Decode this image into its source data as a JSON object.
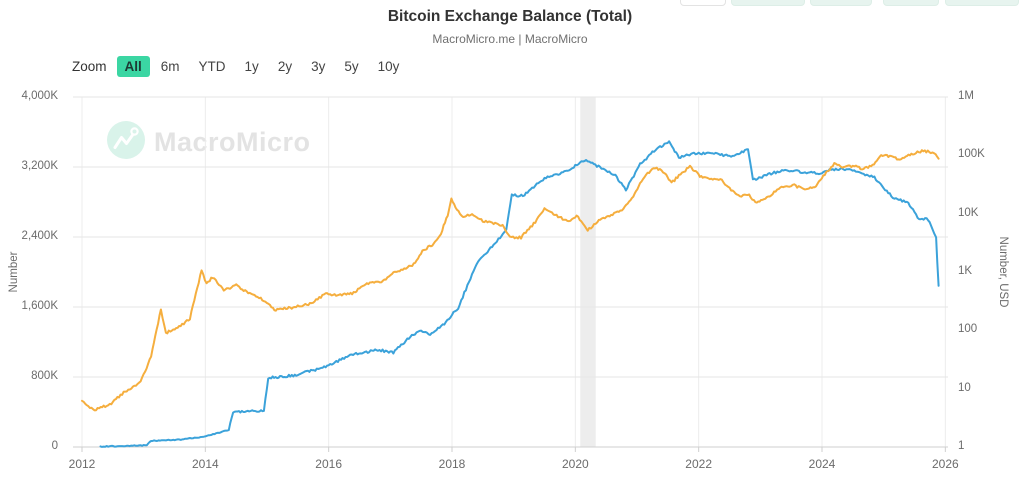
{
  "header": {
    "title": "Bitcoin Exchange Balance (Total)",
    "subtitle": "MacroMicro.me | MacroMicro"
  },
  "toolbar": {
    "zoom_label": "Zoom",
    "ranges": [
      {
        "label": "All",
        "selected": true
      },
      {
        "label": "6m",
        "selected": false
      },
      {
        "label": "YTD",
        "selected": false
      },
      {
        "label": "1y",
        "selected": false
      },
      {
        "label": "2y",
        "selected": false
      },
      {
        "label": "3y",
        "selected": false
      },
      {
        "label": "5y",
        "selected": false
      },
      {
        "label": "10y",
        "selected": false
      }
    ]
  },
  "top_right_partial_buttons": {
    "count": 5
  },
  "watermark": {
    "text": "MacroMicro"
  },
  "theme": {
    "accent_mint": "#3bd6a3",
    "series_blue": "#3ba2da",
    "series_orange": "#f5ae3e",
    "watermark_mint": "#d9f3ea"
  },
  "chart_data": {
    "type": "line",
    "title": "Bitcoin Exchange Balance (Total)",
    "source_caption": "MacroMicro.me | MacroMicro",
    "grid": true,
    "legend": "none",
    "x_axis": {
      "ticks": [
        2012,
        2014,
        2016,
        2018,
        2020,
        2022,
        2024,
        2026
      ],
      "range_years": [
        2011.85,
        2026.05
      ]
    },
    "left_axis": {
      "title": "Number",
      "scale": "linear",
      "range": [
        0,
        4000000
      ],
      "ticks": [
        {
          "value": 0,
          "label": "0"
        },
        {
          "value": 800000,
          "label": "800K"
        },
        {
          "value": 1600000,
          "label": "1,600K"
        },
        {
          "value": 2400000,
          "label": "2,400K"
        },
        {
          "value": 3200000,
          "label": "3,200K"
        },
        {
          "value": 4000000,
          "label": "4,000K"
        }
      ]
    },
    "right_axis": {
      "title": "Number, USD",
      "scale": "log",
      "range": [
        1,
        1000000
      ],
      "ticks": [
        {
          "value": 1,
          "label": "1"
        },
        {
          "value": 10,
          "label": "10"
        },
        {
          "value": 100,
          "label": "100"
        },
        {
          "value": 1000,
          "label": "1K"
        },
        {
          "value": 10000,
          "label": "10K"
        },
        {
          "value": 100000,
          "label": "100K"
        },
        {
          "value": 1000000,
          "label": "1M"
        }
      ]
    },
    "highlight_band": {
      "x_start_year": 2020.08,
      "x_end_year": 2020.33,
      "color": "#ededed"
    },
    "series": [
      {
        "id": "blue-left-exchange-balance",
        "axis": "left",
        "color": "#3ba2da",
        "points": [
          [
            2012.3,
            5000
          ],
          [
            2012.7,
            12000
          ],
          [
            2013.05,
            20000
          ],
          [
            2013.12,
            70000
          ],
          [
            2013.6,
            85000
          ],
          [
            2013.95,
            115000
          ],
          [
            2014.2,
            160000
          ],
          [
            2014.38,
            195000
          ],
          [
            2014.45,
            400000
          ],
          [
            2014.95,
            415000
          ],
          [
            2015.02,
            790000
          ],
          [
            2015.45,
            820000
          ],
          [
            2015.95,
            915000
          ],
          [
            2016.35,
            1050000
          ],
          [
            2016.8,
            1110000
          ],
          [
            2017.05,
            1080000
          ],
          [
            2017.3,
            1245000
          ],
          [
            2017.5,
            1340000
          ],
          [
            2017.62,
            1280000
          ],
          [
            2017.85,
            1390000
          ],
          [
            2018.1,
            1590000
          ],
          [
            2018.4,
            2100000
          ],
          [
            2018.65,
            2290000
          ],
          [
            2018.88,
            2480000
          ],
          [
            2018.97,
            2880000
          ],
          [
            2019.15,
            2870000
          ],
          [
            2019.5,
            3070000
          ],
          [
            2019.85,
            3150000
          ],
          [
            2020.15,
            3280000
          ],
          [
            2020.45,
            3180000
          ],
          [
            2020.65,
            3100000
          ],
          [
            2020.82,
            2940000
          ],
          [
            2021.05,
            3230000
          ],
          [
            2021.3,
            3400000
          ],
          [
            2021.52,
            3490000
          ],
          [
            2021.68,
            3310000
          ],
          [
            2021.9,
            3350000
          ],
          [
            2022.2,
            3360000
          ],
          [
            2022.55,
            3320000
          ],
          [
            2022.8,
            3400000
          ],
          [
            2022.88,
            3050000
          ],
          [
            2023.15,
            3120000
          ],
          [
            2023.4,
            3170000
          ],
          [
            2023.7,
            3140000
          ],
          [
            2023.95,
            3130000
          ],
          [
            2024.15,
            3170000
          ],
          [
            2024.42,
            3180000
          ],
          [
            2024.65,
            3120000
          ],
          [
            2024.85,
            3080000
          ],
          [
            2025.15,
            2850000
          ],
          [
            2025.4,
            2790000
          ],
          [
            2025.55,
            2620000
          ],
          [
            2025.72,
            2600000
          ],
          [
            2025.85,
            2400000
          ],
          [
            2025.89,
            1830000
          ]
        ]
      },
      {
        "id": "orange-right-usd",
        "axis": "right",
        "color": "#f5ae3e",
        "points": [
          [
            2012.0,
            6.2
          ],
          [
            2012.18,
            4.3
          ],
          [
            2012.45,
            5.3
          ],
          [
            2012.7,
            9
          ],
          [
            2012.95,
            13
          ],
          [
            2013.12,
            35
          ],
          [
            2013.28,
            230
          ],
          [
            2013.36,
            90
          ],
          [
            2013.55,
            110
          ],
          [
            2013.75,
            160
          ],
          [
            2013.94,
            1080
          ],
          [
            2014.02,
            620
          ],
          [
            2014.12,
            820
          ],
          [
            2014.3,
            480
          ],
          [
            2014.5,
            590
          ],
          [
            2014.72,
            420
          ],
          [
            2014.95,
            330
          ],
          [
            2015.12,
            225
          ],
          [
            2015.4,
            245
          ],
          [
            2015.72,
            290
          ],
          [
            2015.95,
            430
          ],
          [
            2016.12,
            395
          ],
          [
            2016.38,
            425
          ],
          [
            2016.62,
            640
          ],
          [
            2016.88,
            700
          ],
          [
            2017.05,
            950
          ],
          [
            2017.2,
            1100
          ],
          [
            2017.38,
            1350
          ],
          [
            2017.52,
            2300
          ],
          [
            2017.68,
            2900
          ],
          [
            2017.82,
            4600
          ],
          [
            2017.93,
            9500
          ],
          [
            2017.99,
            18500
          ],
          [
            2018.08,
            11500
          ],
          [
            2018.18,
            9000
          ],
          [
            2018.35,
            9500
          ],
          [
            2018.5,
            7600
          ],
          [
            2018.65,
            6800
          ],
          [
            2018.82,
            6300
          ],
          [
            2018.94,
            3900
          ],
          [
            2019.12,
            3900
          ],
          [
            2019.35,
            7200
          ],
          [
            2019.5,
            12500
          ],
          [
            2019.72,
            8800
          ],
          [
            2019.92,
            7300
          ],
          [
            2020.02,
            9300
          ],
          [
            2020.2,
            5200
          ],
          [
            2020.38,
            7600
          ],
          [
            2020.58,
            9500
          ],
          [
            2020.78,
            11800
          ],
          [
            2020.94,
            19500
          ],
          [
            2021.05,
            33000
          ],
          [
            2021.22,
            56000
          ],
          [
            2021.32,
            61000
          ],
          [
            2021.45,
            50000
          ],
          [
            2021.56,
            33500
          ],
          [
            2021.68,
            45000
          ],
          [
            2021.86,
            65000
          ],
          [
            2022.02,
            44000
          ],
          [
            2022.18,
            40000
          ],
          [
            2022.35,
            39000
          ],
          [
            2022.48,
            29000
          ],
          [
            2022.62,
            20500
          ],
          [
            2022.82,
            20500
          ],
          [
            2022.92,
            15800
          ],
          [
            2023.08,
            17500
          ],
          [
            2023.32,
            28500
          ],
          [
            2023.55,
            30500
          ],
          [
            2023.72,
            26000
          ],
          [
            2023.88,
            28500
          ],
          [
            2024.02,
            44000
          ],
          [
            2024.2,
            71000
          ],
          [
            2024.35,
            62000
          ],
          [
            2024.5,
            66500
          ],
          [
            2024.65,
            59000
          ],
          [
            2024.82,
            67000
          ],
          [
            2024.96,
            99000
          ],
          [
            2025.1,
            97000
          ],
          [
            2025.26,
            83000
          ],
          [
            2025.45,
            105000
          ],
          [
            2025.62,
            118000
          ],
          [
            2025.74,
            116000
          ],
          [
            2025.82,
            110000
          ],
          [
            2025.89,
            88000
          ]
        ]
      }
    ]
  }
}
